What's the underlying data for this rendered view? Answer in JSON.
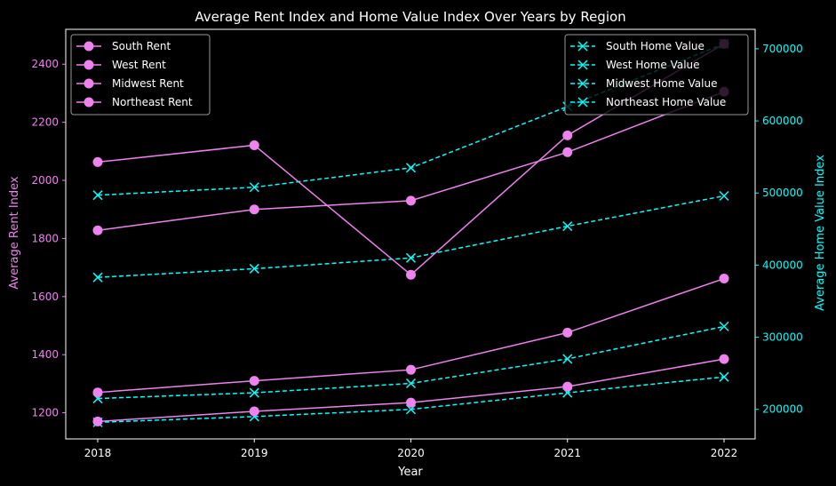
{
  "chart_data": {
    "type": "line",
    "title": "Average Rent Index and Home Value Index Over Years by Region",
    "xlabel": "Year",
    "ylabel_left": "Average Rent Index",
    "ylabel_right": "Average Home Value Index",
    "x": [
      "2018",
      "2019",
      "2020",
      "2021",
      "2022"
    ],
    "ylim_left": [
      1110,
      2520
    ],
    "ylim_right": [
      159000,
      727000
    ],
    "yticks_left": [
      1200,
      1400,
      1600,
      1800,
      2000,
      2200,
      2400
    ],
    "yticks_right": [
      200000,
      300000,
      400000,
      500000,
      600000,
      700000
    ],
    "yticklabels_right": [
      "200000",
      "300000",
      "400000",
      "500000",
      "600000",
      "700000"
    ],
    "rent_color": "#ee82ee",
    "home_color": "#00ffff",
    "grid": false,
    "legend_left_placement": "top-left",
    "legend_right_placement": "top-right",
    "rent_series": [
      {
        "name": "South Rent",
        "values": [
          1170,
          1205,
          1235,
          1290,
          1385
        ]
      },
      {
        "name": "West Rent",
        "values": [
          2063,
          2121,
          1675,
          2155,
          2470
        ]
      },
      {
        "name": "Midwest Rent",
        "values": [
          1270,
          1310,
          1348,
          1476,
          1662
        ]
      },
      {
        "name": "Northeast Rent",
        "values": [
          1828,
          1900,
          1930,
          2097,
          2305
        ]
      }
    ],
    "home_series": [
      {
        "name": "South Home Value",
        "values": [
          182000,
          190000,
          200000,
          223000,
          245000
        ]
      },
      {
        "name": "West Home Value",
        "values": [
          497000,
          508000,
          535000,
          620000,
          707000
        ]
      },
      {
        "name": "Midwest Home Value",
        "values": [
          215000,
          223000,
          236000,
          270000,
          315000
        ]
      },
      {
        "name": "Northeast Home Value",
        "values": [
          383000,
          395000,
          410000,
          454000,
          496000
        ]
      }
    ]
  }
}
